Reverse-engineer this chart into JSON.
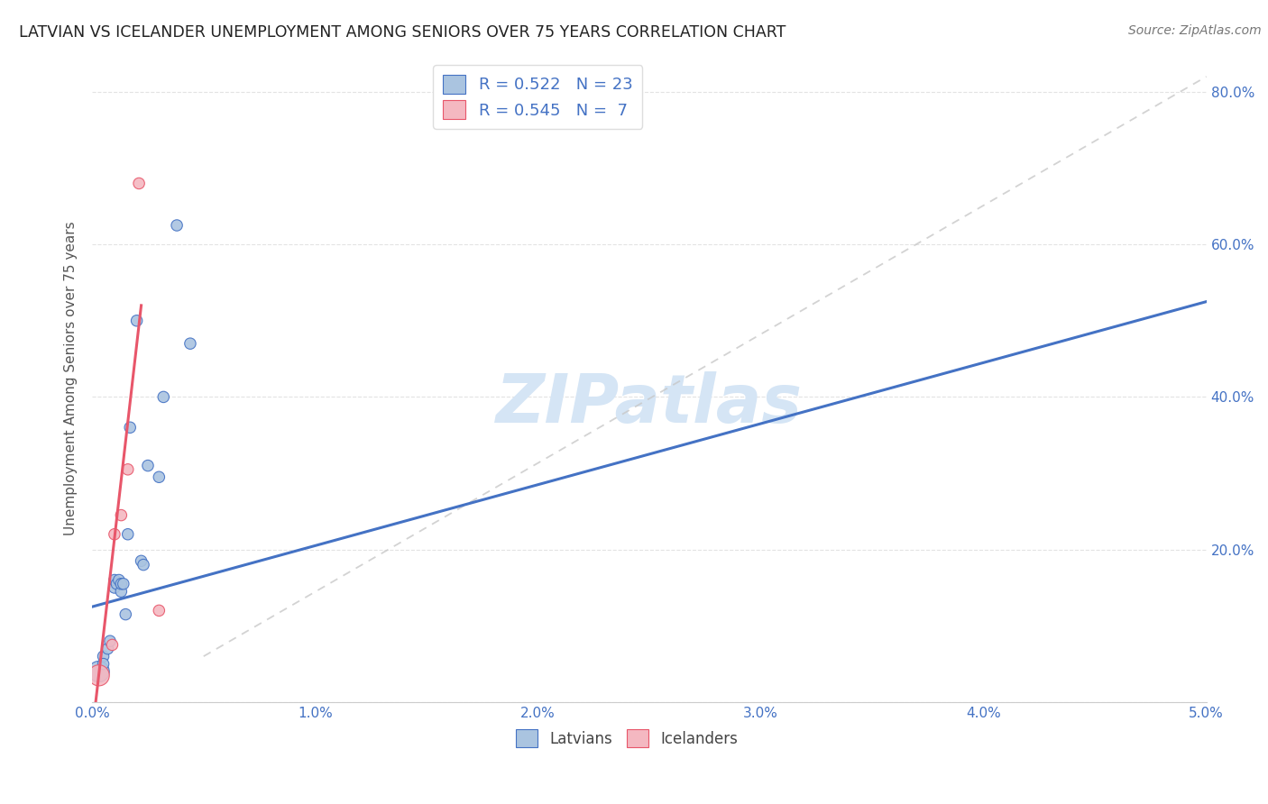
{
  "title": "LATVIAN VS ICELANDER UNEMPLOYMENT AMONG SENIORS OVER 75 YEARS CORRELATION CHART",
  "source": "Source: ZipAtlas.com",
  "ylabel": "Unemployment Among Seniors over 75 years",
  "xlim": [
    0.0,
    0.05
  ],
  "ylim": [
    0.0,
    0.85
  ],
  "latvian_R": "0.522",
  "latvian_N": "23",
  "icelander_R": "0.545",
  "icelander_N": "7",
  "latvian_color": "#aac4e0",
  "latvian_line_color": "#4472c4",
  "icelander_color": "#f4b8c1",
  "icelander_line_color": "#e8566a",
  "diagonal_color": "#c8c8c8",
  "latvian_points": [
    [
      0.0003,
      0.04
    ],
    [
      0.0005,
      0.06
    ],
    [
      0.0005,
      0.05
    ],
    [
      0.0007,
      0.07
    ],
    [
      0.0008,
      0.08
    ],
    [
      0.001,
      0.15
    ],
    [
      0.001,
      0.16
    ],
    [
      0.0011,
      0.155
    ],
    [
      0.0012,
      0.16
    ],
    [
      0.0013,
      0.145
    ],
    [
      0.0013,
      0.155
    ],
    [
      0.0014,
      0.155
    ],
    [
      0.0015,
      0.115
    ],
    [
      0.0016,
      0.22
    ],
    [
      0.0017,
      0.36
    ],
    [
      0.002,
      0.5
    ],
    [
      0.0022,
      0.185
    ],
    [
      0.0023,
      0.18
    ],
    [
      0.0025,
      0.31
    ],
    [
      0.003,
      0.295
    ],
    [
      0.0032,
      0.4
    ],
    [
      0.0038,
      0.625
    ],
    [
      0.0044,
      0.47
    ]
  ],
  "icelander_points": [
    [
      0.0003,
      0.035
    ],
    [
      0.0009,
      0.075
    ],
    [
      0.001,
      0.22
    ],
    [
      0.0013,
      0.245
    ],
    [
      0.0016,
      0.305
    ],
    [
      0.003,
      0.12
    ],
    [
      0.0021,
      0.68
    ]
  ],
  "latvian_line": [
    [
      0.0,
      0.125
    ],
    [
      0.05,
      0.525
    ]
  ],
  "icelander_line": [
    [
      0.0,
      -0.04
    ],
    [
      0.0022,
      0.52
    ]
  ],
  "diagonal_line": [
    [
      0.005,
      0.06
    ],
    [
      0.05,
      0.82
    ]
  ],
  "watermark": "ZIPatlas",
  "watermark_color": "#d5e5f5",
  "background_color": "#ffffff",
  "grid_color": "#e0e0e0",
  "latvian_sizes": [
    80,
    80,
    80,
    80,
    80,
    80,
    80,
    80,
    80,
    80,
    80,
    80,
    80,
    80,
    80,
    80,
    80,
    80,
    80,
    80,
    80,
    80,
    80
  ],
  "icelander_sizes": [
    80,
    80,
    80,
    80,
    80,
    80,
    80
  ],
  "first_latvian_size": 280
}
